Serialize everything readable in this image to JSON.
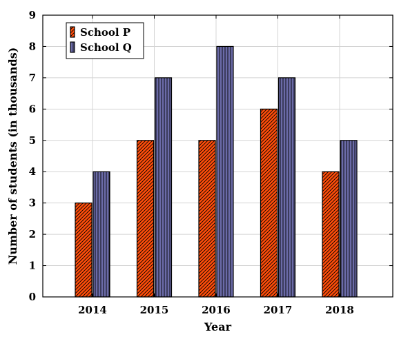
{
  "chart_data": {
    "type": "bar",
    "title": "",
    "xlabel": "Year",
    "ylabel": "Number of students (in thousands)",
    "categories": [
      "2014",
      "2015",
      "2016",
      "2017",
      "2018"
    ],
    "ylim": [
      0,
      9
    ],
    "yticks": [
      "0",
      "1",
      "2",
      "3",
      "4",
      "5",
      "6",
      "7",
      "8",
      "9"
    ],
    "grid": true,
    "legend_position": "top-left",
    "series": [
      {
        "name": "School P",
        "values": [
          3,
          5,
          5,
          6,
          4
        ],
        "color": "#ff4d0a",
        "pattern": "diagonal-hatch"
      },
      {
        "name": "School Q",
        "values": [
          4,
          7,
          8,
          7,
          5
        ],
        "color": "#6b6ba8",
        "pattern": "vertical-lines"
      }
    ]
  }
}
